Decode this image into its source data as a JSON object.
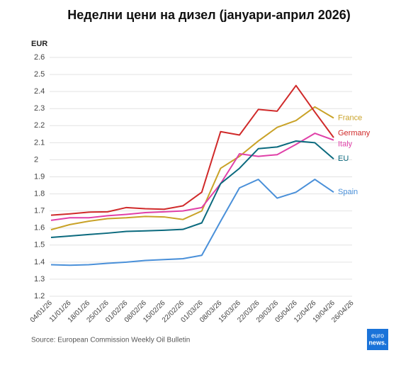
{
  "chart_data": {
    "type": "line",
    "title": "Неделни цени на дизел (јануари-април 2026)",
    "y_label": "EUR",
    "source": "Source: European Commission Weekly Oil Bulletin",
    "logo": [
      "euro",
      "news."
    ],
    "categories": [
      "04/01/26",
      "11/01/26",
      "18/01/26",
      "25/01/26",
      "01/02/26",
      "08/02/26",
      "15/02/26",
      "22/02/26",
      "01/03/26",
      "08/03/26",
      "15/03/26",
      "22/03/26",
      "29/03/26",
      "05/04/26",
      "12/04/26",
      "19/04/26",
      "26/04/26"
    ],
    "series": [
      {
        "name": "France",
        "color": "#c9a227",
        "values": [
          1.59,
          1.62,
          1.64,
          1.655,
          1.66,
          1.668,
          1.665,
          1.65,
          1.7,
          1.95,
          2.02,
          2.11,
          2.19,
          2.23,
          2.31,
          2.245,
          null
        ]
      },
      {
        "name": "Germany",
        "color": "#d02a2a",
        "values": [
          1.675,
          1.683,
          1.693,
          1.695,
          1.72,
          1.713,
          1.71,
          1.73,
          1.81,
          2.165,
          2.145,
          2.295,
          2.285,
          2.435,
          2.28,
          2.13,
          null
        ]
      },
      {
        "name": "Italy",
        "color": "#e040a8",
        "values": [
          1.645,
          1.66,
          1.66,
          1.672,
          1.68,
          1.69,
          1.695,
          1.7,
          1.72,
          1.86,
          2.035,
          2.02,
          2.03,
          2.09,
          2.155,
          2.115,
          null
        ]
      },
      {
        "name": "EU",
        "color": "#0b6a7e",
        "values": [
          1.545,
          1.553,
          1.562,
          1.57,
          1.58,
          1.583,
          1.587,
          1.592,
          1.63,
          1.86,
          1.95,
          2.065,
          2.075,
          2.11,
          2.1,
          2.005,
          null
        ]
      },
      {
        "name": "Spain",
        "color": "#4a90d9",
        "values": [
          1.385,
          1.382,
          1.385,
          1.393,
          1.4,
          1.41,
          1.415,
          1.42,
          1.44,
          1.64,
          1.835,
          1.885,
          1.775,
          1.81,
          1.885,
          1.81,
          null
        ]
      }
    ],
    "ylim": [
      1.2,
      2.6
    ],
    "yticks": [
      1.2,
      1.3,
      1.4,
      1.5,
      1.6,
      1.7,
      1.8,
      1.9,
      2,
      2.1,
      2.2,
      2.3,
      2.4,
      2.5,
      2.6
    ],
    "grid": true
  }
}
